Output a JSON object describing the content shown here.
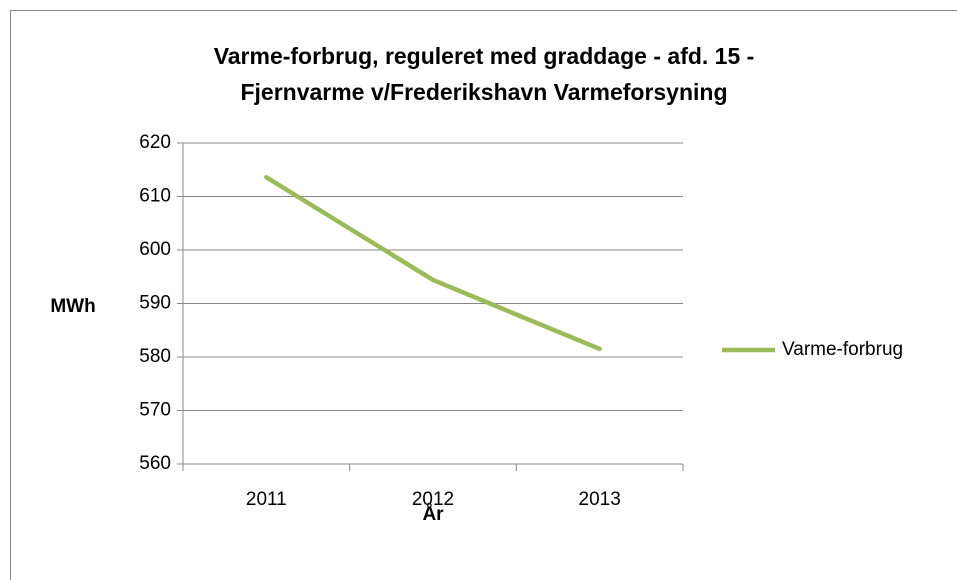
{
  "chart_data": {
    "type": "line",
    "title": [
      "Varme-forbrug, reguleret med graddage - afd. 15 -",
      "Fjernvarme v/Frederikshavn Varmeforsyning"
    ],
    "x_label": "År",
    "y_label": "MWh",
    "categories": [
      "2011",
      "2012",
      "2013"
    ],
    "series": [
      {
        "name": "Varme-forbrug",
        "color": "#9bbb59",
        "values": [
          613.6,
          594.4,
          581.5
        ]
      }
    ],
    "ylim": [
      560,
      620
    ],
    "yticks": [
      560,
      570,
      580,
      590,
      600,
      610,
      620
    ],
    "grid": true,
    "legend": "right"
  }
}
